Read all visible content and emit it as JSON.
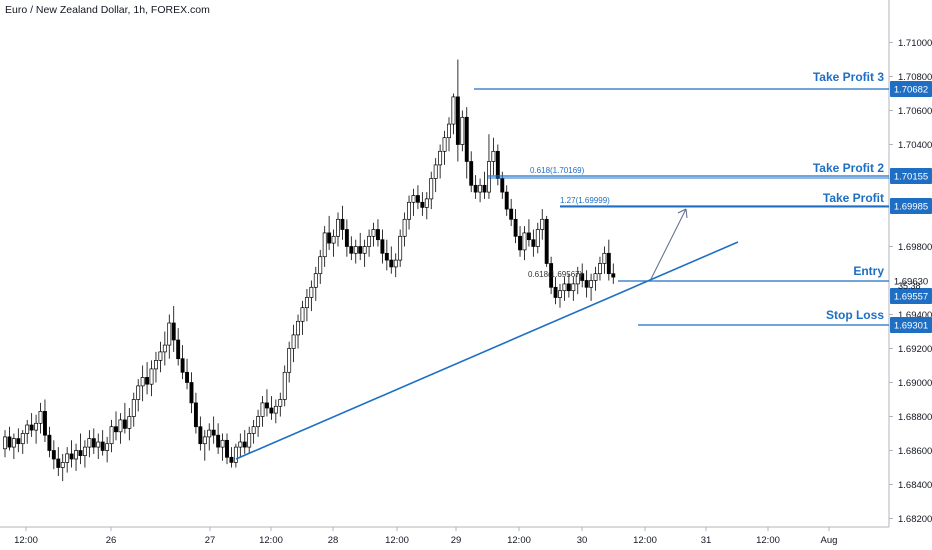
{
  "header": {
    "title": "Euro / New Zealand Dollar, 1h, FOREX.com"
  },
  "chart_data": {
    "type": "candlestick",
    "symbol": "EUR/NZD",
    "timeframe": "1h",
    "x_ticks": [
      "12:00",
      "26",
      "12:00",
      "27",
      "12:00",
      "28",
      "12:00",
      "29",
      "12:00",
      "30",
      "12:00",
      "31",
      "12:00",
      "Aug"
    ],
    "y_ticks": [
      "1.71000",
      "1.70800",
      "1.70600",
      "1.70400",
      "1.70200",
      "1.69800",
      "1.69400",
      "1.69200",
      "1.69000",
      "1.68800",
      "1.68600",
      "1.68400",
      "1.68200"
    ],
    "ylim": [
      1.6815,
      1.7125
    ],
    "candles": [
      [
        1.6861,
        1.6872,
        1.6856,
        1.6868
      ],
      [
        1.6868,
        1.6874,
        1.686,
        1.6862
      ],
      [
        1.6862,
        1.687,
        1.6855,
        1.6867
      ],
      [
        1.6867,
        1.6873,
        1.6859,
        1.6864
      ],
      [
        1.6864,
        1.6872,
        1.6858,
        1.687
      ],
      [
        1.687,
        1.6878,
        1.6864,
        1.6875
      ],
      [
        1.6875,
        1.6882,
        1.6868,
        1.6872
      ],
      [
        1.6872,
        1.6881,
        1.6864,
        1.6876
      ],
      [
        1.6876,
        1.6888,
        1.687,
        1.6883
      ],
      [
        1.6883,
        1.689,
        1.6865,
        1.6869
      ],
      [
        1.6869,
        1.6874,
        1.6856,
        1.686
      ],
      [
        1.686,
        1.6866,
        1.6849,
        1.6855
      ],
      [
        1.6855,
        1.6862,
        1.6845,
        1.685
      ],
      [
        1.685,
        1.6858,
        1.6842,
        1.6853
      ],
      [
        1.6853,
        1.6862,
        1.6847,
        1.6858
      ],
      [
        1.6858,
        1.6866,
        1.685,
        1.6855
      ],
      [
        1.6855,
        1.6864,
        1.6848,
        1.686
      ],
      [
        1.686,
        1.687,
        1.6852,
        1.6857
      ],
      [
        1.6857,
        1.6866,
        1.685,
        1.6862
      ],
      [
        1.6862,
        1.6872,
        1.6856,
        1.6867
      ],
      [
        1.6867,
        1.6873,
        1.6858,
        1.6862
      ],
      [
        1.6862,
        1.687,
        1.6855,
        1.6865
      ],
      [
        1.6865,
        1.6872,
        1.6857,
        1.686
      ],
      [
        1.686,
        1.6868,
        1.6853,
        1.6864
      ],
      [
        1.6864,
        1.6878,
        1.6859,
        1.6874
      ],
      [
        1.6874,
        1.6883,
        1.6866,
        1.6871
      ],
      [
        1.6871,
        1.6882,
        1.6864,
        1.6878
      ],
      [
        1.6878,
        1.6888,
        1.687,
        1.6873
      ],
      [
        1.6873,
        1.6885,
        1.6866,
        1.688
      ],
      [
        1.688,
        1.6894,
        1.6874,
        1.689
      ],
      [
        1.689,
        1.6902,
        1.6883,
        1.6898
      ],
      [
        1.6898,
        1.691,
        1.6889,
        1.6903
      ],
      [
        1.6903,
        1.6912,
        1.6893,
        1.6899
      ],
      [
        1.6899,
        1.6913,
        1.6892,
        1.6908
      ],
      [
        1.6908,
        1.6918,
        1.69,
        1.6913
      ],
      [
        1.6913,
        1.6924,
        1.6906,
        1.6918
      ],
      [
        1.6918,
        1.693,
        1.691,
        1.6922
      ],
      [
        1.6922,
        1.694,
        1.6914,
        1.6935
      ],
      [
        1.6935,
        1.6945,
        1.6918,
        1.6925
      ],
      [
        1.6925,
        1.6932,
        1.691,
        1.6914
      ],
      [
        1.6914,
        1.6922,
        1.6902,
        1.6906
      ],
      [
        1.6906,
        1.6914,
        1.6896,
        1.69
      ],
      [
        1.69,
        1.6906,
        1.6882,
        1.6888
      ],
      [
        1.6888,
        1.6894,
        1.687,
        1.6874
      ],
      [
        1.6874,
        1.688,
        1.686,
        1.6864
      ],
      [
        1.6864,
        1.6872,
        1.6854,
        1.6868
      ],
      [
        1.6868,
        1.6876,
        1.686,
        1.6872
      ],
      [
        1.6872,
        1.688,
        1.6864,
        1.6869
      ],
      [
        1.6869,
        1.6876,
        1.6858,
        1.6862
      ],
      [
        1.6862,
        1.687,
        1.6854,
        1.6866
      ],
      [
        1.6866,
        1.687,
        1.6852,
        1.6856
      ],
      [
        1.6856,
        1.6862,
        1.685,
        1.6853
      ],
      [
        1.6853,
        1.6864,
        1.685,
        1.6862
      ],
      [
        1.6862,
        1.687,
        1.6856,
        1.6865
      ],
      [
        1.6865,
        1.6872,
        1.6858,
        1.6862
      ],
      [
        1.6862,
        1.6874,
        1.6858,
        1.687
      ],
      [
        1.687,
        1.6878,
        1.6864,
        1.6874
      ],
      [
        1.6874,
        1.6884,
        1.6868,
        1.688
      ],
      [
        1.688,
        1.6892,
        1.6874,
        1.6888
      ],
      [
        1.6888,
        1.6896,
        1.688,
        1.6885
      ],
      [
        1.6885,
        1.6892,
        1.6878,
        1.6882
      ],
      [
        1.6882,
        1.689,
        1.6876,
        1.6886
      ],
      [
        1.6886,
        1.6894,
        1.688,
        1.689
      ],
      [
        1.689,
        1.691,
        1.6886,
        1.6906
      ],
      [
        1.6906,
        1.6924,
        1.69,
        1.692
      ],
      [
        1.692,
        1.6934,
        1.6912,
        1.6928
      ],
      [
        1.6928,
        1.694,
        1.692,
        1.6936
      ],
      [
        1.6936,
        1.6948,
        1.6928,
        1.6944
      ],
      [
        1.6944,
        1.6955,
        1.6936,
        1.695
      ],
      [
        1.695,
        1.696,
        1.6942,
        1.6956
      ],
      [
        1.6956,
        1.6968,
        1.6948,
        1.6964
      ],
      [
        1.6964,
        1.6978,
        1.6958,
        1.6974
      ],
      [
        1.6974,
        1.6992,
        1.6968,
        1.6988
      ],
      [
        1.6988,
        1.6998,
        1.6978,
        1.6982
      ],
      [
        1.6982,
        1.699,
        1.6974,
        1.6986
      ],
      [
        1.6986,
        1.7,
        1.698,
        1.6996
      ],
      [
        1.6996,
        1.7004,
        1.6984,
        1.699
      ],
      [
        1.699,
        1.6996,
        1.6974,
        1.698
      ],
      [
        1.698,
        1.6986,
        1.6972,
        1.6976
      ],
      [
        1.6976,
        1.6984,
        1.697,
        1.698
      ],
      [
        1.698,
        1.6988,
        1.6972,
        1.6976
      ],
      [
        1.6976,
        1.6984,
        1.6968,
        1.698
      ],
      [
        1.698,
        1.699,
        1.6974,
        1.6986
      ],
      [
        1.6986,
        1.6994,
        1.698,
        1.699
      ],
      [
        1.699,
        1.6996,
        1.698,
        1.6984
      ],
      [
        1.6984,
        1.699,
        1.697,
        1.6976
      ],
      [
        1.6976,
        1.6984,
        1.6966,
        1.6972
      ],
      [
        1.6972,
        1.698,
        1.6964,
        1.6968
      ],
      [
        1.6968,
        1.6976,
        1.6962,
        1.6972
      ],
      [
        1.6972,
        1.699,
        1.6968,
        1.6986
      ],
      [
        1.6986,
        1.7,
        1.698,
        1.6996
      ],
      [
        1.6996,
        1.701,
        1.699,
        1.7006
      ],
      [
        1.7006,
        1.7014,
        1.6998,
        1.701
      ],
      [
        1.701,
        1.7016,
        1.7002,
        1.7006
      ],
      [
        1.7006,
        1.7012,
        1.6998,
        1.7003
      ],
      [
        1.7003,
        1.7012,
        1.6996,
        1.7008
      ],
      [
        1.7008,
        1.7024,
        1.7002,
        1.702
      ],
      [
        1.702,
        1.7032,
        1.7012,
        1.7028
      ],
      [
        1.7028,
        1.704,
        1.702,
        1.7036
      ],
      [
        1.7036,
        1.7048,
        1.7028,
        1.7044
      ],
      [
        1.7044,
        1.7056,
        1.7036,
        1.7052
      ],
      [
        1.7052,
        1.707,
        1.7046,
        1.7068
      ],
      [
        1.7068,
        1.709,
        1.703,
        1.704
      ],
      [
        1.704,
        1.706,
        1.7036,
        1.7056
      ],
      [
        1.7056,
        1.7062,
        1.702,
        1.703
      ],
      [
        1.703,
        1.7036,
        1.7012,
        1.7016
      ],
      [
        1.7016,
        1.7022,
        1.7008,
        1.7012
      ],
      [
        1.7012,
        1.702,
        1.7006,
        1.7016
      ],
      [
        1.7016,
        1.7024,
        1.7008,
        1.7012
      ],
      [
        1.7012,
        1.7046,
        1.7008,
        1.703
      ],
      [
        1.703,
        1.7044,
        1.7022,
        1.7036
      ],
      [
        1.7036,
        1.704,
        1.7016,
        1.702
      ],
      [
        1.702,
        1.7024,
        1.7008,
        1.7012
      ],
      [
        1.7012,
        1.7016,
        1.6998,
        1.7002
      ],
      [
        1.7002,
        1.7008,
        1.6992,
        1.6996
      ],
      [
        1.6996,
        1.7002,
        1.6982,
        1.6986
      ],
      [
        1.6986,
        1.6992,
        1.6974,
        1.6978
      ],
      [
        1.6978,
        1.6992,
        1.6972,
        1.6988
      ],
      [
        1.6988,
        1.6996,
        1.698,
        1.6984
      ],
      [
        1.6984,
        1.699,
        1.6974,
        1.698
      ],
      [
        1.698,
        1.6994,
        1.6976,
        1.699
      ],
      [
        1.699,
        1.7002,
        1.6984,
        1.6996
      ],
      [
        1.6996,
        1.6998,
        1.6968,
        1.697
      ],
      [
        1.697,
        1.6974,
        1.6952,
        1.6956
      ],
      [
        1.6956,
        1.6962,
        1.6946,
        1.695
      ],
      [
        1.695,
        1.6958,
        1.6944,
        1.6954
      ],
      [
        1.6954,
        1.6962,
        1.6948,
        1.6958
      ],
      [
        1.6958,
        1.6964,
        1.695,
        1.6954
      ],
      [
        1.6954,
        1.6962,
        1.6948,
        1.6958
      ],
      [
        1.6958,
        1.6968,
        1.6952,
        1.6964
      ],
      [
        1.6964,
        1.697,
        1.6956,
        1.696
      ],
      [
        1.696,
        1.6966,
        1.695,
        1.6956
      ],
      [
        1.6956,
        1.6964,
        1.6948,
        1.696
      ],
      [
        1.696,
        1.6968,
        1.6954,
        1.6964
      ],
      [
        1.6964,
        1.6974,
        1.696,
        1.697
      ],
      [
        1.697,
        1.698,
        1.6964,
        1.6976
      ],
      [
        1.6976,
        1.6984,
        1.696,
        1.6964
      ],
      [
        1.6964,
        1.697,
        1.6958,
        1.6962
      ]
    ],
    "levels": [
      {
        "label": "Take Profit 3",
        "value": "1.70682"
      },
      {
        "label": "Take Profit 2",
        "value": "1.70155"
      },
      {
        "label": "Take Profit",
        "value": "1.69985"
      },
      {
        "label": "Entry",
        "value": "1.69630"
      },
      {
        "label": "",
        "value": "1.69557"
      },
      {
        "label": "Stop Loss",
        "value": "1.69301"
      }
    ],
    "countdown": "35:38",
    "fib_labels": [
      "0.618(1.70169)",
      "1.27(1.69999)",
      "0.618(1.69567)"
    ],
    "colors": {
      "accent": "#1e6fc4",
      "candle_up": "#ffffff",
      "candle_down": "#000000",
      "grid": "#e6e6e6"
    }
  }
}
